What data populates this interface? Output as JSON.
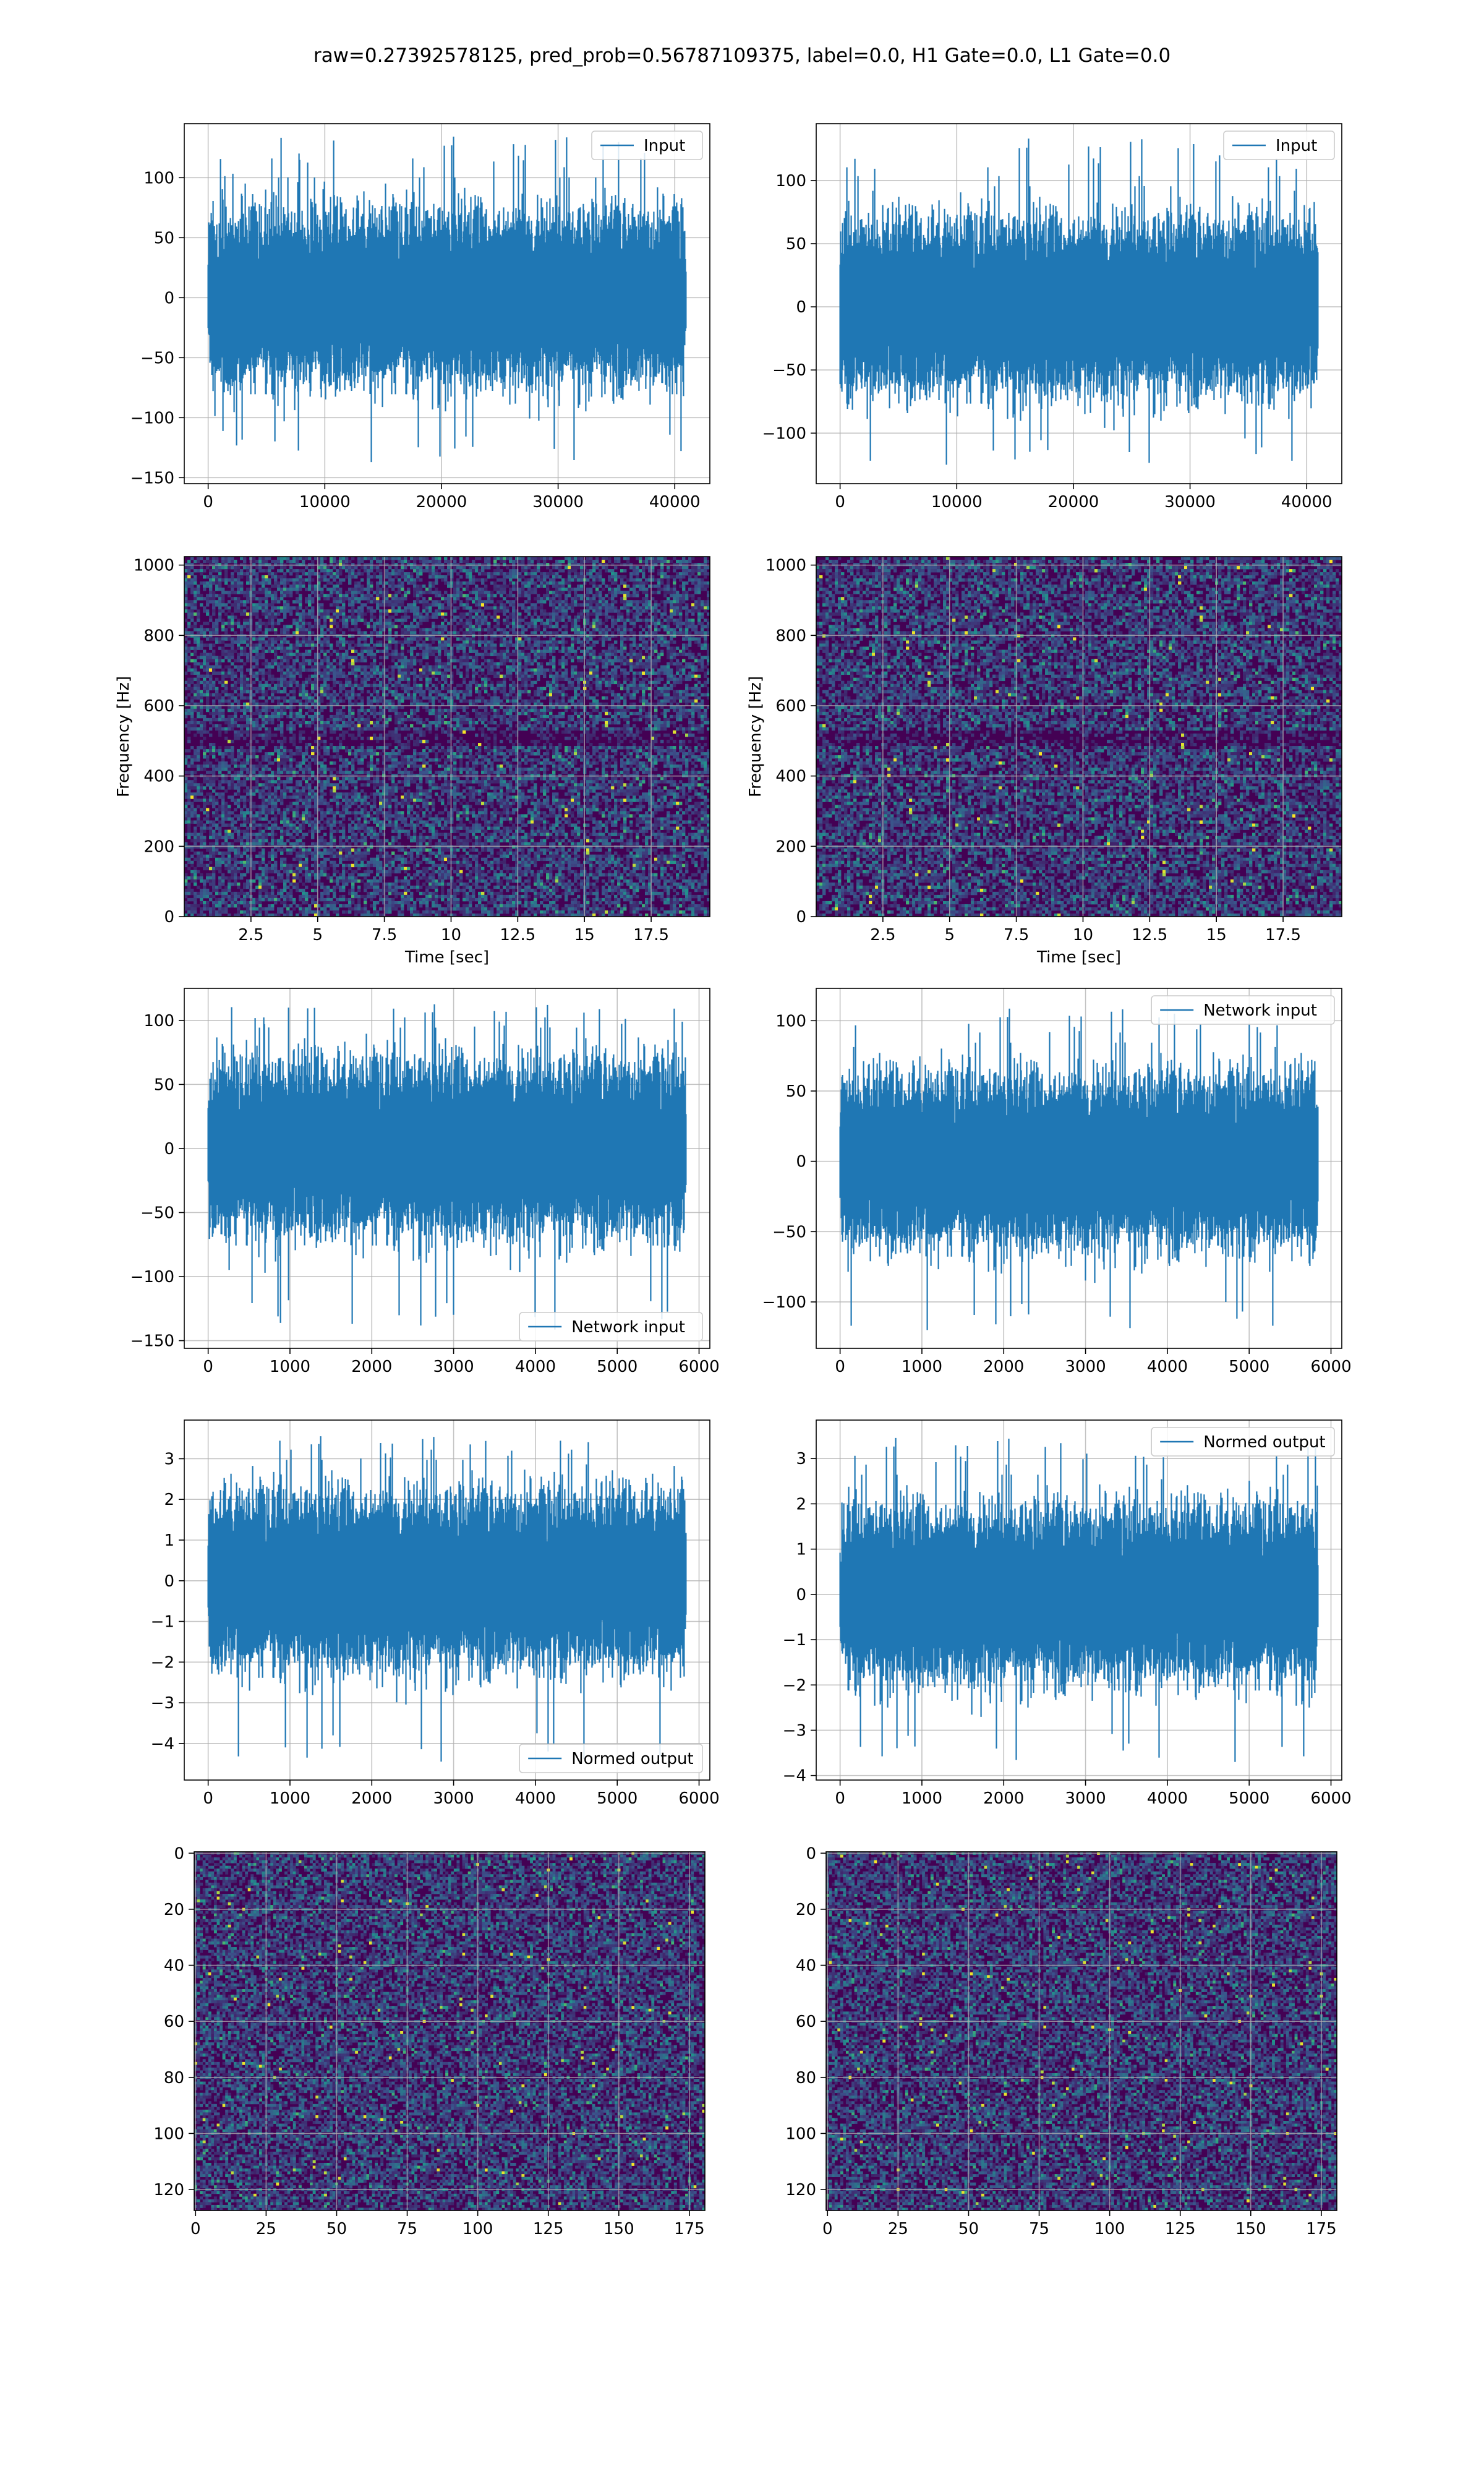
{
  "title": "raw=0.27392578125, pred_prob=0.56787109375, label=0.0, H1 Gate=0.0, L1 Gate=0.0",
  "colors": {
    "line": "#1f77b4",
    "grid": "#b0b0b0",
    "axis": "#000000",
    "heat_low": "#440154",
    "heat_mid": "#21918c",
    "heat_high": "#fde725"
  },
  "chart_data": [
    {
      "id": "input-h1",
      "type": "line",
      "series": [
        {
          "name": "Input",
          "n": 40960,
          "amplitude_envelope": [
            -137,
            136
          ]
        }
      ],
      "xlim": [
        -2048,
        43008
      ],
      "ylim": [
        -155,
        145
      ],
      "xticks": [
        0,
        10000,
        20000,
        30000,
        40000
      ],
      "yticks": [
        -150,
        -100,
        -50,
        0,
        50,
        100
      ],
      "xlabel": "",
      "ylabel": "",
      "grid": true,
      "legend": "upper right",
      "legend_label": "Input"
    },
    {
      "id": "input-l1",
      "type": "line",
      "series": [
        {
          "name": "Input",
          "n": 40960,
          "amplitude_envelope": [
            -125,
            135
          ]
        }
      ],
      "xlim": [
        -2048,
        43008
      ],
      "ylim": [
        -140,
        145
      ],
      "xticks": [
        0,
        10000,
        20000,
        30000,
        40000
      ],
      "yticks": [
        -100,
        -50,
        0,
        50,
        100
      ],
      "xlabel": "",
      "ylabel": "",
      "grid": true,
      "legend": "upper right",
      "legend_label": "Input"
    },
    {
      "id": "spectrogram-h1",
      "type": "heatmap",
      "extent": {
        "x": [
          0,
          19.7
        ],
        "y": [
          0,
          1024
        ]
      },
      "xticks": [
        2.5,
        5.0,
        7.5,
        10.0,
        12.5,
        15.0,
        17.5
      ],
      "yticks": [
        0,
        200,
        400,
        600,
        800,
        1000
      ],
      "xlabel": "Time [sec]",
      "ylabel": "Frequency [Hz]",
      "grid": true,
      "colormap": "viridis"
    },
    {
      "id": "spectrogram-l1",
      "type": "heatmap",
      "extent": {
        "x": [
          0,
          19.7
        ],
        "y": [
          0,
          1024
        ]
      },
      "xticks": [
        2.5,
        5.0,
        7.5,
        10.0,
        12.5,
        15.0,
        17.5
      ],
      "yticks": [
        0,
        200,
        400,
        600,
        800,
        1000
      ],
      "xlabel": "Time [sec]",
      "ylabel": "Frequency [Hz]",
      "grid": true,
      "colormap": "viridis"
    },
    {
      "id": "network-input-h1",
      "type": "line",
      "series": [
        {
          "name": "Network input",
          "n": 5840,
          "amplitude_envelope": [
            -143,
            114
          ]
        }
      ],
      "xlim": [
        -292,
        6132
      ],
      "ylim": [
        -156,
        125
      ],
      "xticks": [
        0,
        1000,
        2000,
        3000,
        4000,
        5000,
        6000
      ],
      "yticks": [
        -150,
        -100,
        -50,
        0,
        50,
        100
      ],
      "xlabel": "",
      "ylabel": "",
      "grid": true,
      "legend": "lower right",
      "legend_label": "Network input"
    },
    {
      "id": "network-input-l1",
      "type": "line",
      "series": [
        {
          "name": "Network input",
          "n": 5840,
          "amplitude_envelope": [
            -120,
            110
          ]
        }
      ],
      "xlim": [
        -292,
        6132
      ],
      "ylim": [
        -133,
        123
      ],
      "xticks": [
        0,
        1000,
        2000,
        3000,
        4000,
        5000,
        6000
      ],
      "yticks": [
        -100,
        -50,
        0,
        50,
        100
      ],
      "xlabel": "",
      "ylabel": "",
      "grid": true,
      "legend": "upper right",
      "legend_label": "Network input"
    },
    {
      "id": "normed-output-h1",
      "type": "line",
      "series": [
        {
          "name": "Normed output",
          "n": 5840,
          "amplitude_envelope": [
            -4.5,
            3.6
          ]
        }
      ],
      "xlim": [
        -292,
        6132
      ],
      "ylim": [
        -4.9,
        3.95
      ],
      "xticks": [
        0,
        1000,
        2000,
        3000,
        4000,
        5000,
        6000
      ],
      "yticks": [
        -4,
        -3,
        -2,
        -1,
        0,
        1,
        2,
        3
      ],
      "xlabel": "",
      "ylabel": "",
      "grid": true,
      "legend": "lower right",
      "legend_label": "Normed output"
    },
    {
      "id": "normed-output-l1",
      "type": "line",
      "series": [
        {
          "name": "Normed output",
          "n": 5840,
          "amplitude_envelope": [
            -3.7,
            3.5
          ]
        }
      ],
      "xlim": [
        -292,
        6132
      ],
      "ylim": [
        -4.1,
        3.85
      ],
      "xticks": [
        0,
        1000,
        2000,
        3000,
        4000,
        5000,
        6000
      ],
      "yticks": [
        -4,
        -3,
        -2,
        -1,
        0,
        1,
        2,
        3
      ],
      "xlabel": "",
      "ylabel": "",
      "grid": true,
      "legend": "upper right",
      "legend_label": "Normed output"
    },
    {
      "id": "network-image-h1",
      "type": "heatmap",
      "shape": [
        128,
        181
      ],
      "xlim": [
        -0.5,
        180.5
      ],
      "ylim": [
        127.5,
        -0.5
      ],
      "xticks": [
        0,
        25,
        50,
        75,
        100,
        125,
        150,
        175
      ],
      "yticks": [
        0,
        20,
        40,
        60,
        80,
        100,
        120
      ],
      "xlabel": "",
      "ylabel": "",
      "grid": true,
      "colormap": "viridis"
    },
    {
      "id": "network-image-l1",
      "type": "heatmap",
      "shape": [
        128,
        181
      ],
      "xlim": [
        -0.5,
        180.5
      ],
      "ylim": [
        127.5,
        -0.5
      ],
      "xticks": [
        0,
        25,
        50,
        75,
        100,
        125,
        150,
        175
      ],
      "yticks": [
        0,
        20,
        40,
        60,
        80,
        100,
        120
      ],
      "xlabel": "",
      "ylabel": "",
      "grid": true,
      "colormap": "viridis"
    }
  ]
}
